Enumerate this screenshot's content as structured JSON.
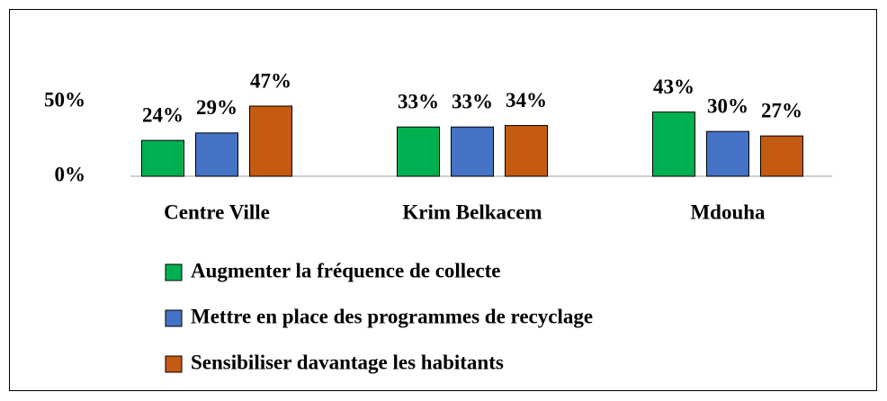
{
  "chart_data": {
    "type": "bar",
    "categories": [
      "Centre Ville",
      "Krim Belkacem",
      "Mdouha"
    ],
    "series": [
      {
        "name": "Augmenter la fréquence de collecte",
        "color": "#00b050",
        "values": [
          24,
          33,
          43
        ],
        "value_labels": [
          "24%",
          "33%",
          "43%"
        ]
      },
      {
        "name": "Mettre en place des programmes de recyclage",
        "color": "#4472c4",
        "values": [
          29,
          33,
          30
        ],
        "value_labels": [
          "29%",
          "33%",
          "30%"
        ]
      },
      {
        "name": "Sensibiliser davantage les habitants",
        "color": "#c55a11",
        "values": [
          47,
          34,
          27
        ],
        "value_labels": [
          "47%",
          "34%",
          "27%"
        ]
      }
    ],
    "ylim": [
      0,
      50
    ],
    "yticks": [
      {
        "value": 0,
        "label": "0%"
      },
      {
        "value": 50,
        "label": "50%"
      }
    ],
    "grid": false,
    "legend": "bottom"
  }
}
